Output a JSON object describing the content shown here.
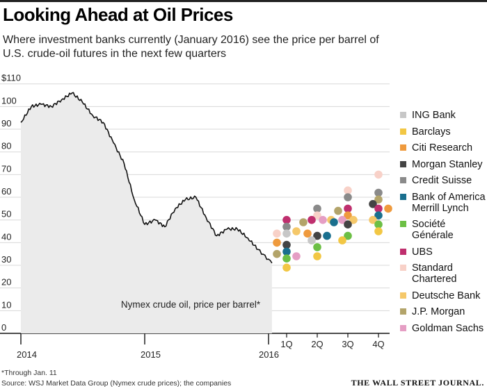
{
  "header": {
    "title": "Looking Ahead at Oil Prices",
    "subtitle": "Where investment banks currently (January 2016) see the price per barrel of U.S. crude-oil futures in the next few quarters"
  },
  "footer": {
    "footnote": "*Through Jan. 11",
    "source": "Source: WSJ Market Data Group (Nymex crude prices); the companies",
    "logo": "THE WALL STREET JOURNAL."
  },
  "chart_data": {
    "type": "line",
    "area_label": "Nymex crude oil, price per barrel*",
    "y_ticks": [
      "$110",
      "100",
      "90",
      "80",
      "70",
      "60",
      "50",
      "40",
      "30",
      "20",
      "10",
      "0"
    ],
    "ylim": [
      0,
      110
    ],
    "x_tick_labels": [
      "2014",
      "2015",
      "2016"
    ],
    "quarter_labels": [
      "1Q",
      "2Q",
      "3Q",
      "4Q"
    ],
    "series": [
      {
        "name": "Nymex crude oil, price per barrel*",
        "x": [
          "2014-01",
          "2014-02",
          "2014-03",
          "2014-04",
          "2014-05",
          "2014-06",
          "2014-07",
          "2014-08",
          "2014-09",
          "2014-10",
          "2014-11",
          "2014-12",
          "2015-01",
          "2015-02",
          "2015-03",
          "2015-04",
          "2015-05",
          "2015-06",
          "2015-07",
          "2015-08",
          "2015-09",
          "2015-10",
          "2015-11",
          "2015-12",
          "2016-01-11"
        ],
        "values": [
          93,
          100,
          101,
          100,
          103,
          106,
          102,
          96,
          93,
          84,
          75,
          59,
          48,
          50,
          47,
          55,
          59,
          60,
          51,
          43,
          46,
          46,
          42,
          37,
          31
        ]
      }
    ],
    "forecast_banks": [
      {
        "name": "ING Bank",
        "color": "#c7c7c7"
      },
      {
        "name": "Barclays",
        "color": "#f2c744"
      },
      {
        "name": "Citi Research",
        "color": "#ef9a3d"
      },
      {
        "name": "Morgan Stanley",
        "color": "#444444"
      },
      {
        "name": "Credit Suisse",
        "color": "#8a8a8a"
      },
      {
        "name": "Bank of America Merrill Lynch",
        "color": "#1a6f8e"
      },
      {
        "name": "Société Générale",
        "color": "#6cbf45"
      },
      {
        "name": "UBS",
        "color": "#bf2f6e"
      },
      {
        "name": "Standard Chartered",
        "color": "#f8d1c8"
      },
      {
        "name": "Deutsche Bank",
        "color": "#f5c86a"
      },
      {
        "name": "J.P. Morgan",
        "color": "#b3a46a"
      },
      {
        "name": "Goldman Sachs",
        "color": "#e59ec4"
      }
    ],
    "forecasts": [
      {
        "quarter": "1Q",
        "values": {
          "UBS": 50,
          "Credit Suisse": 47,
          "ING Bank": 44,
          "Standard Chartered": 44,
          "Deutsche Bank": 45,
          "Morgan Stanley": 39,
          "Citi Research": 40,
          "Bank of America Merrill Lynch": 36,
          "J.P. Morgan": 35,
          "Société Générale": 33,
          "Goldman Sachs": 34,
          "Barclays": 29
        }
      },
      {
        "quarter": "2Q",
        "values": {
          "Credit Suisse": 55,
          "Standard Chartered": 52,
          "UBS": 50,
          "Goldman Sachs": 50,
          "J.P. Morgan": 49,
          "Deutsche Bank": 50,
          "Morgan Stanley": 43,
          "Citi Research": 44,
          "Bank of America Merrill Lynch": 43,
          "ING Bank": 41,
          "Société Générale": 38,
          "Barclays": 34
        }
      },
      {
        "quarter": "3Q",
        "values": {
          "Standard Chartered": 63,
          "Credit Suisse": 60,
          "UBS": 55,
          "J.P. Morgan": 54,
          "Citi Research": 52,
          "Goldman Sachs": 50,
          "Deutsche Bank": 50,
          "Bank of America Merrill Lynch": 49,
          "Morgan Stanley": 48,
          "Société Générale": 43,
          "Barclays": 41
        }
      },
      {
        "quarter": "4Q",
        "values": {
          "Standard Chartered": 70,
          "Credit Suisse": 62,
          "J.P. Morgan": 59,
          "Morgan Stanley": 57,
          "UBS": 55,
          "Citi Research": 55,
          "Bank of America Merrill Lynch": 52,
          "Deutsche Bank": 50,
          "Société Générale": 48,
          "Barclays": 45
        }
      }
    ]
  }
}
